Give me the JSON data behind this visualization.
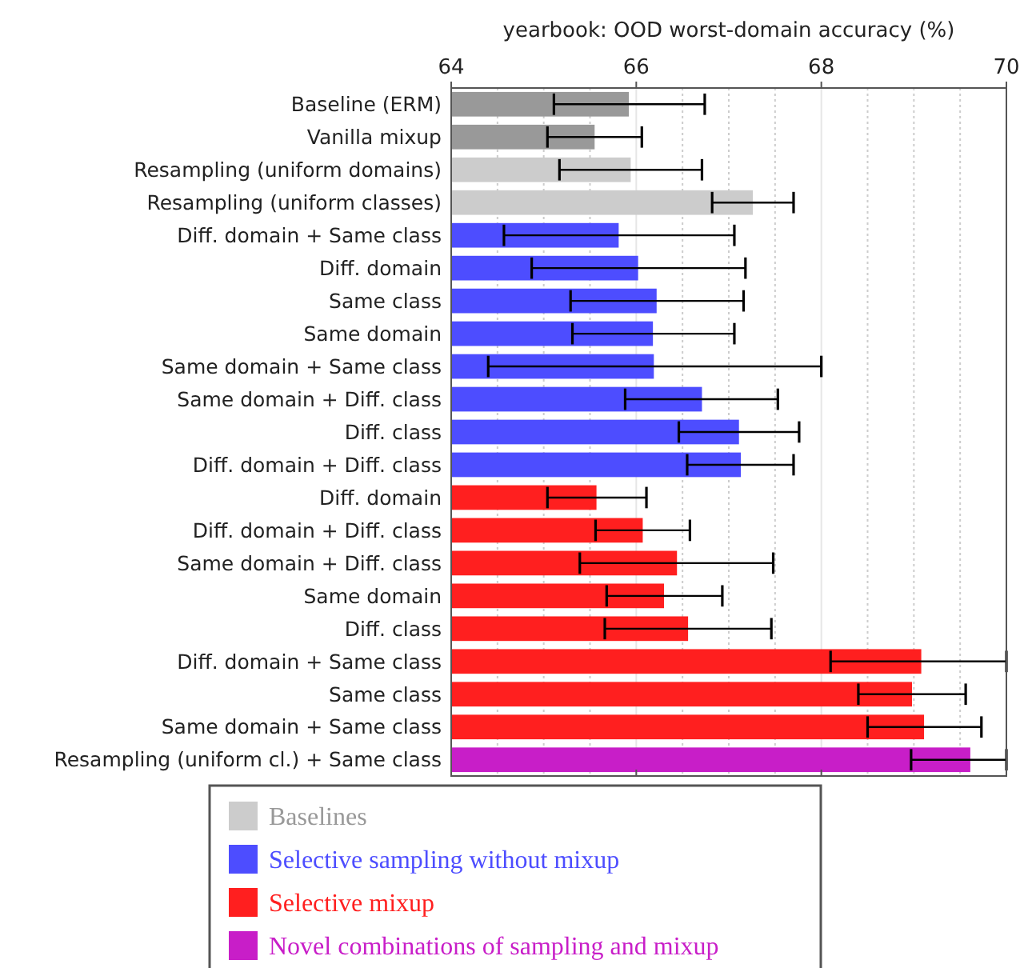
{
  "chart_data": {
    "type": "bar",
    "orientation": "horizontal",
    "xlabel": "yearbook: OOD worst-domain accuracy (%)",
    "categories": [
      "Baseline (ERM)",
      "Vanilla mixup",
      "Resampling (uniform domains)",
      "Resampling (uniform classes)",
      "Diff. domain + Same class",
      "Diff. domain",
      "Same class",
      "Same domain",
      "Same domain + Same class",
      "Same domain + Diff. class",
      "Diff. class",
      "Diff. domain + Diff. class",
      "Diff. domain",
      "Diff. domain + Diff. class",
      "Same domain + Diff. class",
      "Same domain",
      "Diff. class",
      "Diff. domain + Same class",
      "Same class",
      "Same domain + Same class",
      "Resampling (uniform cl.) + Same class"
    ],
    "xlim": [
      64,
      70
    ],
    "xticks": [
      64,
      {
        "value": 64.5,
        "label": null
      },
      {
        "value": 65,
        "label": null
      },
      {
        "value": 65.5,
        "label": null
      },
      66,
      {
        "value": 66.5,
        "label": null
      },
      {
        "value": 67,
        "label": null
      },
      {
        "value": 67.5,
        "label": null
      },
      68,
      {
        "value": 68.5,
        "label": null
      },
      {
        "value": 69,
        "label": null
      },
      {
        "value": 69.5,
        "label": null
      },
      70
    ],
    "grid": "x",
    "legend": "bottom",
    "series": [
      {
        "name": "Baselines",
        "color": "#cccccc",
        "colors": [
          "#999999",
          "#999999",
          "#cccccc",
          "#cccccc",
          null,
          null,
          null,
          null,
          null,
          null,
          null,
          null,
          null,
          null,
          null,
          null,
          null,
          null,
          null,
          null,
          null
        ],
        "values": [
          65.92,
          65.55,
          65.94,
          67.26,
          null,
          null,
          null,
          null,
          null,
          null,
          null,
          null,
          null,
          null,
          null,
          null,
          null,
          null,
          null,
          null,
          null
        ],
        "errors": [
          [
            65.11,
            66.74
          ],
          [
            65.04,
            66.06
          ],
          [
            65.17,
            66.71
          ],
          [
            66.82,
            67.7
          ],
          null,
          null,
          null,
          null,
          null,
          null,
          null,
          null,
          null,
          null,
          null,
          null,
          null,
          null,
          null,
          null,
          null
        ]
      },
      {
        "name": "Selective sampling without mixup",
        "color": "#4d4dff",
        "values": [
          null,
          null,
          null,
          null,
          65.81,
          66.02,
          66.22,
          66.18,
          66.19,
          66.71,
          67.11,
          67.13,
          null,
          null,
          null,
          null,
          null,
          null,
          null,
          null,
          null
        ],
        "errors": [
          null,
          null,
          null,
          null,
          [
            64.57,
            67.06
          ],
          [
            64.87,
            67.18
          ],
          [
            65.29,
            67.16
          ],
          [
            65.31,
            67.06
          ],
          [
            64.4,
            68.0
          ],
          [
            65.88,
            67.53
          ],
          [
            66.46,
            67.76
          ],
          [
            66.55,
            67.7
          ],
          null,
          null,
          null,
          null,
          null,
          null,
          null,
          null,
          null
        ]
      },
      {
        "name": "Selective mixup",
        "color": "#ff1f1f",
        "values": [
          null,
          null,
          null,
          null,
          null,
          null,
          null,
          null,
          null,
          null,
          null,
          null,
          65.57,
          66.07,
          66.44,
          66.3,
          66.56,
          69.08,
          68.98,
          69.11,
          null
        ],
        "errors": [
          null,
          null,
          null,
          null,
          null,
          null,
          null,
          null,
          null,
          null,
          null,
          null,
          [
            65.04,
            66.11
          ],
          [
            65.56,
            66.58
          ],
          [
            65.39,
            67.48
          ],
          [
            65.68,
            66.93
          ],
          [
            65.66,
            67.46
          ],
          [
            68.1,
            70.0
          ],
          [
            68.4,
            69.56
          ],
          [
            68.5,
            69.73
          ],
          null
        ]
      },
      {
        "name": "Novel combinations of sampling and mixup",
        "color": "#c81ec8",
        "values": [
          null,
          null,
          null,
          null,
          null,
          null,
          null,
          null,
          null,
          null,
          null,
          null,
          null,
          null,
          null,
          null,
          null,
          null,
          null,
          null,
          69.61
        ],
        "errors": [
          null,
          null,
          null,
          null,
          null,
          null,
          null,
          null,
          null,
          null,
          null,
          null,
          null,
          null,
          null,
          null,
          null,
          null,
          null,
          null,
          [
            68.97,
            70.0
          ]
        ]
      }
    ]
  }
}
